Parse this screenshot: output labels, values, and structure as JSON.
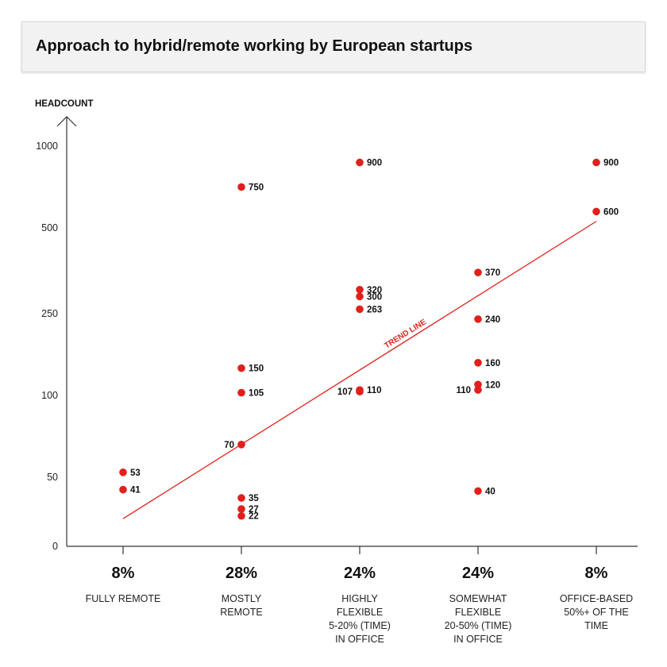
{
  "chart_data": {
    "type": "scatter",
    "title": "Approach to hybrid/remote working by European startups",
    "ylabel": "HEADCOUNT",
    "y_scale": "nonlinear",
    "y_ticks": [
      {
        "value": 0,
        "label": "0"
      },
      {
        "value": 50,
        "label": "50"
      },
      {
        "value": 100,
        "label": "100"
      },
      {
        "value": 250,
        "label": "250"
      },
      {
        "value": 500,
        "label": "500"
      },
      {
        "value": 1000,
        "label": "1000"
      }
    ],
    "categories": [
      {
        "percent": "8%",
        "label": "FULLY REMOTE"
      },
      {
        "percent": "28%",
        "label": "MOSTLY\nREMOTE"
      },
      {
        "percent": "24%",
        "label": "HIGHLY\nFLEXIBLE\n5-20% (TIME)\nIN OFFICE"
      },
      {
        "percent": "24%",
        "label": "SOMEWHAT\nFLEXIBLE\n20-50% (TIME)\nIN OFFICE"
      },
      {
        "percent": "8%",
        "label": "OFFICE-BASED\n50%+ OF THE\nTIME"
      }
    ],
    "points": [
      {
        "category": 0,
        "value": 53,
        "label": "53",
        "label_side": "right"
      },
      {
        "category": 0,
        "value": 41,
        "label": "41",
        "label_side": "right"
      },
      {
        "category": 1,
        "value": 750,
        "label": "750",
        "label_side": "right"
      },
      {
        "category": 1,
        "value": 150,
        "label": "150",
        "label_side": "right"
      },
      {
        "category": 1,
        "value": 105,
        "label": "105",
        "label_side": "right"
      },
      {
        "category": 1,
        "value": 70,
        "label": "70",
        "label_side": "left"
      },
      {
        "category": 1,
        "value": 35,
        "label": "35",
        "label_side": "right"
      },
      {
        "category": 1,
        "value": 27,
        "label": "27",
        "label_side": "right"
      },
      {
        "category": 1,
        "value": 22,
        "label": "22",
        "label_side": "right"
      },
      {
        "category": 2,
        "value": 900,
        "label": "900",
        "label_side": "right"
      },
      {
        "category": 2,
        "value": 320,
        "label": "320",
        "label_side": "right"
      },
      {
        "category": 2,
        "value": 300,
        "label": "300",
        "label_side": "right"
      },
      {
        "category": 2,
        "value": 263,
        "label": "263",
        "label_side": "right"
      },
      {
        "category": 2,
        "value": 110,
        "label": "110",
        "label_side": "right"
      },
      {
        "category": 2,
        "value": 107,
        "label": "107",
        "label_side": "left"
      },
      {
        "category": 3,
        "value": 370,
        "label": "370",
        "label_side": "right"
      },
      {
        "category": 3,
        "value": 240,
        "label": "240",
        "label_side": "right"
      },
      {
        "category": 3,
        "value": 160,
        "label": "160",
        "label_side": "right"
      },
      {
        "category": 3,
        "value": 120,
        "label": "120",
        "label_side": "right"
      },
      {
        "category": 3,
        "value": 110,
        "label": "110",
        "label_side": "left"
      },
      {
        "category": 3,
        "value": 40,
        "label": "40",
        "label_side": "right"
      },
      {
        "category": 4,
        "value": 900,
        "label": "900",
        "label_side": "right"
      },
      {
        "category": 4,
        "value": 600,
        "label": "600",
        "label_side": "right"
      }
    ],
    "trend_line": {
      "label": "TREND LINE",
      "start": {
        "category": 0,
        "value": 20
      },
      "end": {
        "category": 4,
        "value": 540
      }
    },
    "colors": {
      "point": "#e0201b",
      "trend": "#e0201b",
      "axis": "#333333"
    }
  }
}
